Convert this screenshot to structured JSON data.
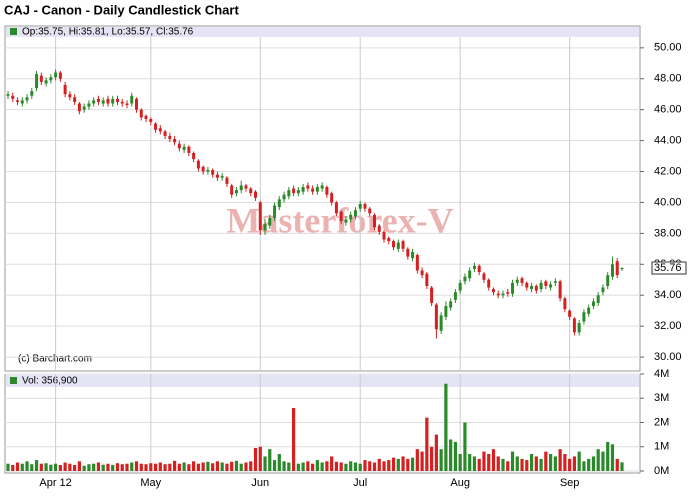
{
  "chart_data": {
    "type": "candlestick",
    "title": "CAJ - Canon - Daily Candlestick Chart",
    "ohlc_label": "Op:35.75, Hi:35.81, Lo:35.57, Cl:35.76",
    "volume_label": "Vol: 356,900",
    "last_price_label": "35.76",
    "source": "(c) Barchart.com",
    "watermark": "Masterforex-V",
    "up_color": "#2a8a2a",
    "down_color": "#d42020",
    "grid": true,
    "categories": [
      null,
      null,
      null,
      null,
      null,
      null,
      null,
      null,
      null,
      null,
      "Apr 12",
      null,
      null,
      null,
      null,
      null,
      null,
      null,
      null,
      null,
      null,
      null,
      null,
      null,
      null,
      null,
      null,
      null,
      null,
      null,
      "May",
      null,
      null,
      null,
      null,
      null,
      null,
      null,
      null,
      null,
      null,
      null,
      null,
      null,
      null,
      null,
      null,
      null,
      null,
      null,
      null,
      null,
      null,
      "Jun",
      null,
      null,
      null,
      null,
      null,
      null,
      null,
      null,
      null,
      null,
      null,
      null,
      null,
      null,
      null,
      null,
      null,
      null,
      null,
      null,
      "Jul",
      null,
      null,
      null,
      null,
      null,
      null,
      null,
      null,
      null,
      null,
      null,
      null,
      null,
      null,
      null,
      null,
      null,
      null,
      null,
      null,
      "Aug",
      null,
      null,
      null,
      null,
      null,
      null,
      null,
      null,
      null,
      null,
      null,
      null,
      null,
      null,
      null,
      null,
      null,
      null,
      null,
      null,
      null,
      null,
      "Sep",
      null,
      null,
      null,
      null,
      null,
      null,
      null,
      null,
      null,
      null,
      null
    ],
    "open": [
      46.9,
      46.9,
      46.6,
      46.4,
      46.6,
      46.9,
      47.4,
      48.2,
      47.7,
      47.9,
      48.1,
      48.4,
      47.6,
      47.0,
      46.8,
      46.4,
      46.0,
      46.2,
      46.4,
      46.7,
      46.4,
      46.7,
      46.4,
      46.7,
      46.5,
      46.4,
      46.4,
      46.7,
      46.0,
      45.6,
      45.4,
      45.1,
      44.8,
      44.6,
      44.3,
      44.1,
      43.8,
      43.4,
      43.6,
      43.2,
      42.7,
      42.3,
      42.0,
      42.1,
      41.8,
      41.6,
      41.6,
      41.1,
      40.6,
      40.8,
      41.1,
      40.9,
      40.7,
      40.0,
      38.2,
      38.5,
      39.0,
      39.7,
      40.2,
      40.4,
      40.9,
      40.6,
      40.7,
      41.1,
      40.9,
      40.7,
      40.9,
      41.0,
      40.6,
      40.0,
      39.4,
      38.7,
      38.9,
      39.1,
      39.6,
      39.9,
      39.6,
      39.2,
      38.5,
      38.1,
      37.7,
      37.5,
      37.0,
      37.5,
      37.0,
      36.4,
      36.6,
      35.6,
      35.4,
      34.5,
      33.4,
      31.7,
      32.6,
      33.2,
      33.7,
      34.3,
      34.9,
      35.1,
      35.7,
      35.9,
      35.4,
      35.0,
      34.4,
      34.1,
      34.0,
      34.2,
      34.1,
      34.8,
      35.1,
      34.8,
      34.4,
      34.6,
      34.4,
      34.9,
      34.5,
      34.8,
      34.9,
      33.8,
      33.0,
      32.5,
      31.6,
      32.3,
      32.8,
      33.3,
      33.5,
      34.2,
      34.6,
      35.2,
      36.2,
      35.75
    ],
    "high": [
      47.2,
      47.1,
      46.8,
      46.8,
      47.0,
      47.4,
      48.5,
      48.4,
      48.1,
      48.3,
      48.6,
      48.5,
      47.8,
      47.2,
      47.0,
      46.5,
      46.4,
      46.6,
      46.8,
      46.9,
      46.8,
      46.9,
      46.9,
      46.9,
      46.7,
      46.6,
      47.1,
      46.8,
      46.1,
      45.7,
      45.5,
      45.2,
      45.0,
      44.7,
      44.5,
      44.3,
      44.0,
      43.8,
      43.7,
      43.3,
      42.8,
      42.4,
      42.3,
      42.2,
      42.0,
      41.9,
      41.7,
      41.2,
      41.0,
      41.4,
      41.2,
      41.0,
      40.8,
      40.1,
      38.9,
      39.2,
      40.0,
      40.4,
      40.7,
      41.0,
      41.1,
      41.0,
      41.2,
      41.3,
      41.1,
      41.2,
      41.3,
      41.1,
      40.7,
      40.1,
      39.5,
      39.1,
      39.4,
      39.7,
      40.1,
      40.0,
      39.7,
      39.3,
      38.6,
      38.2,
      37.8,
      37.6,
      37.6,
      37.6,
      37.1,
      37.0,
      36.7,
      35.8,
      35.5,
      34.6,
      33.5,
      32.9,
      33.6,
      33.8,
      34.4,
      35.0,
      35.4,
      35.8,
      36.1,
      36.0,
      35.5,
      35.1,
      34.5,
      34.3,
      34.3,
      34.4,
      35.0,
      35.2,
      35.2,
      34.9,
      34.8,
      34.7,
      35.0,
      35.0,
      34.9,
      35.1,
      35.0,
      33.9,
      33.1,
      32.6,
      32.4,
      33.1,
      33.4,
      33.8,
      34.2,
      34.7,
      35.5,
      36.5,
      36.4,
      35.81
    ],
    "low": [
      46.7,
      46.5,
      46.3,
      46.2,
      46.4,
      46.7,
      47.2,
      47.6,
      47.5,
      47.7,
      47.9,
      47.8,
      46.8,
      46.6,
      46.3,
      45.7,
      45.8,
      46.0,
      46.2,
      46.3,
      46.2,
      46.2,
      46.2,
      46.3,
      46.2,
      46.1,
      46.2,
      45.8,
      45.3,
      45.2,
      45.0,
      44.5,
      44.4,
      44.1,
      43.9,
      43.7,
      43.3,
      43.2,
      43.0,
      42.6,
      42.0,
      41.8,
      41.8,
      41.6,
      41.4,
      41.4,
      41.0,
      40.3,
      40.4,
      40.6,
      40.7,
      40.4,
      40.1,
      37.9,
      37.9,
      38.3,
      38.8,
      39.5,
      40.0,
      40.2,
      40.4,
      40.4,
      40.5,
      40.7,
      40.5,
      40.5,
      40.7,
      40.3,
      39.8,
      39.1,
      38.6,
      38.5,
      38.7,
      38.9,
      39.4,
      39.4,
      39.1,
      38.2,
      37.9,
      37.4,
      37.3,
      36.9,
      36.8,
      36.8,
      36.3,
      36.2,
      35.4,
      35.1,
      34.4,
      33.3,
      31.2,
      31.5,
      32.4,
      33.0,
      33.5,
      34.1,
      34.7,
      34.9,
      35.5,
      35.3,
      34.8,
      34.3,
      34.0,
      33.8,
      33.8,
      33.9,
      33.9,
      34.6,
      34.6,
      34.3,
      34.2,
      34.1,
      34.2,
      34.4,
      34.3,
      34.6,
      33.6,
      32.9,
      32.4,
      31.4,
      31.4,
      32.1,
      32.6,
      33.1,
      33.3,
      34.0,
      34.4,
      35.0,
      35.1,
      35.57
    ],
    "close": [
      47.0,
      46.7,
      46.5,
      46.6,
      46.8,
      47.2,
      48.3,
      47.8,
      47.9,
      48.1,
      48.4,
      48.0,
      47.0,
      46.8,
      46.5,
      45.9,
      46.2,
      46.4,
      46.6,
      46.5,
      46.6,
      46.4,
      46.7,
      46.5,
      46.4,
      46.3,
      46.9,
      46.0,
      45.5,
      45.4,
      45.2,
      44.7,
      44.6,
      44.3,
      44.1,
      43.9,
      43.5,
      43.6,
      43.2,
      42.8,
      42.2,
      42.0,
      42.1,
      41.8,
      41.6,
      41.7,
      41.2,
      40.5,
      40.8,
      41.1,
      40.9,
      40.6,
      40.3,
      38.2,
      38.6,
      39.0,
      39.8,
      40.2,
      40.5,
      40.8,
      40.6,
      40.8,
      41.0,
      40.9,
      40.7,
      41.0,
      41.1,
      40.5,
      40.0,
      39.3,
      38.8,
      38.9,
      39.2,
      39.5,
      39.9,
      39.6,
      39.3,
      38.4,
      38.1,
      37.6,
      37.5,
      37.1,
      37.4,
      37.0,
      36.5,
      36.8,
      35.6,
      35.3,
      34.6,
      33.5,
      31.8,
      32.7,
      33.3,
      33.6,
      34.2,
      34.8,
      35.2,
      35.6,
      35.9,
      35.5,
      35.0,
      34.5,
      34.2,
      34.0,
      34.1,
      34.1,
      34.8,
      35.0,
      34.8,
      34.5,
      34.6,
      34.3,
      34.8,
      34.6,
      34.7,
      34.9,
      33.8,
      33.1,
      32.6,
      31.6,
      32.2,
      32.9,
      33.2,
      33.6,
      34.0,
      34.5,
      35.3,
      36.0,
      35.3,
      35.76
    ],
    "volume": [
      300000,
      250000,
      350000,
      300000,
      400000,
      280000,
      450000,
      300000,
      320000,
      260000,
      300000,
      250000,
      350000,
      300000,
      250000,
      400000,
      220000,
      280000,
      300000,
      350000,
      260000,
      300000,
      250000,
      320000,
      280000,
      300000,
      350000,
      400000,
      300000,
      280000,
      320000,
      300000,
      350000,
      280000,
      300000,
      420000,
      300000,
      350000,
      280000,
      400000,
      300000,
      350000,
      380000,
      320000,
      400000,
      350000,
      300000,
      380000,
      420000,
      300000,
      350000,
      400000,
      950000,
      1000000,
      600000,
      900000,
      450000,
      700000,
      400000,
      350000,
      2600000,
      300000,
      350000,
      400000,
      300000,
      450000,
      350000,
      400000,
      600000,
      380000,
      350000,
      300000,
      400000,
      350000,
      300000,
      450000,
      400000,
      350000,
      500000,
      400000,
      450000,
      550000,
      500000,
      600000,
      500000,
      550000,
      900000,
      800000,
      2200000,
      1000000,
      1500000,
      900000,
      3600000,
      1300000,
      1200000,
      700000,
      2000000,
      700000,
      600000,
      500000,
      800000,
      700000,
      900000,
      600000,
      500000,
      400000,
      800000,
      600000,
      500000,
      450000,
      700000,
      600000,
      500000,
      800000,
      700000,
      600000,
      900000,
      700000,
      500000,
      600000,
      800000,
      400000,
      500000,
      600000,
      900000,
      800000,
      1200000,
      1100000,
      500000,
      356900
    ],
    "ylim": [
      29.1,
      50.7
    ],
    "yticks": [
      {
        "value": 30,
        "label": "30.00"
      },
      {
        "value": 32,
        "label": "32.00"
      },
      {
        "value": 34,
        "label": "34.00"
      },
      {
        "value": 36,
        "label": "36.00"
      },
      {
        "value": 38,
        "label": "38.00"
      },
      {
        "value": 40,
        "label": "40.00"
      },
      {
        "value": 42,
        "label": "42.00"
      },
      {
        "value": 44,
        "label": "44.00"
      },
      {
        "value": 46,
        "label": "46.00"
      },
      {
        "value": 48,
        "label": "48.00"
      },
      {
        "value": 50,
        "label": "50.00"
      }
    ],
    "y2lim": [
      0,
      4000000
    ],
    "y2ticks": [
      {
        "value": 0,
        "label": "0M"
      },
      {
        "value": 1000000,
        "label": "1M"
      },
      {
        "value": 2000000,
        "label": "2M"
      },
      {
        "value": 3000000,
        "label": "3M"
      },
      {
        "value": 4000000,
        "label": "4M"
      }
    ]
  }
}
